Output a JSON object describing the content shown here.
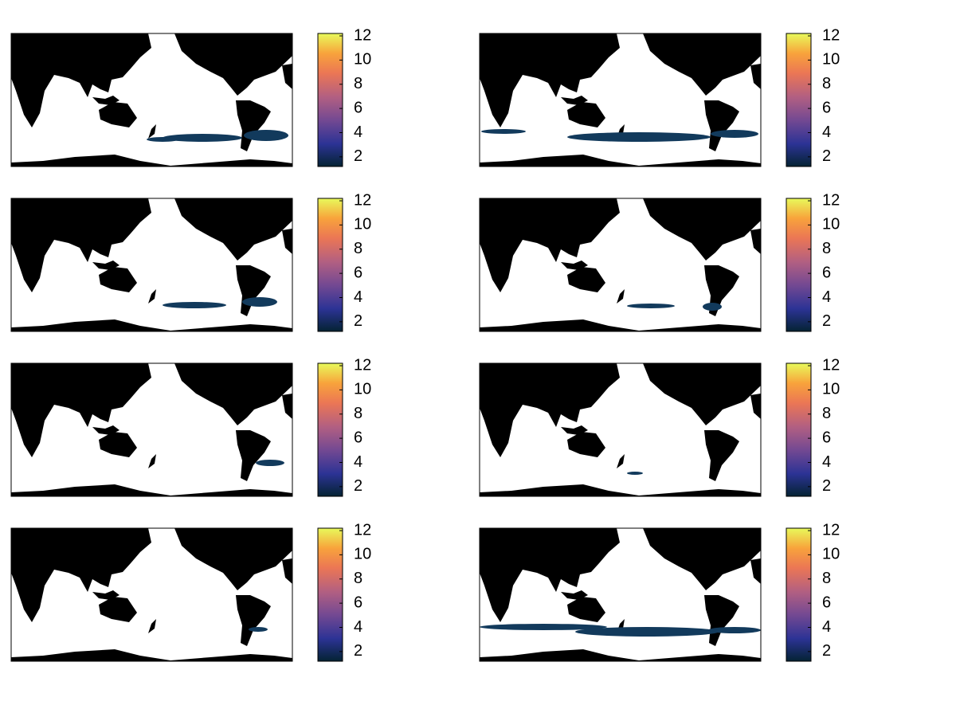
{
  "panels": [
    {
      "colorbar": {
        "clim": [
          1.2,
          12.2
        ],
        "ticks": [
          2,
          4,
          6,
          8,
          10,
          12
        ]
      }
    },
    {
      "colorbar": {
        "clim": [
          1.2,
          12.2
        ],
        "ticks": [
          2,
          4,
          6,
          8,
          10,
          12
        ]
      }
    },
    {
      "colorbar": {
        "clim": [
          1.2,
          12.2
        ],
        "ticks": [
          2,
          4,
          6,
          8,
          10,
          12
        ]
      }
    },
    {
      "colorbar": {
        "clim": [
          1.2,
          12.2
        ],
        "ticks": [
          2,
          4,
          6,
          8,
          10,
          12
        ]
      }
    },
    {
      "colorbar": {
        "clim": [
          1.2,
          12.2
        ],
        "ticks": [
          2,
          4,
          6,
          8,
          10,
          12
        ]
      }
    },
    {
      "colorbar": {
        "clim": [
          1.2,
          12.2
        ],
        "ticks": [
          2,
          4,
          6,
          8,
          10,
          12
        ]
      }
    },
    {
      "colorbar": {
        "clim": [
          1.2,
          12.2
        ],
        "ticks": [
          2,
          4,
          6,
          8,
          10,
          12
        ]
      }
    },
    {
      "colorbar": {
        "clim": [
          1.2,
          12.2
        ],
        "ticks": [
          2,
          4,
          6,
          8,
          10,
          12
        ]
      }
    }
  ]
}
